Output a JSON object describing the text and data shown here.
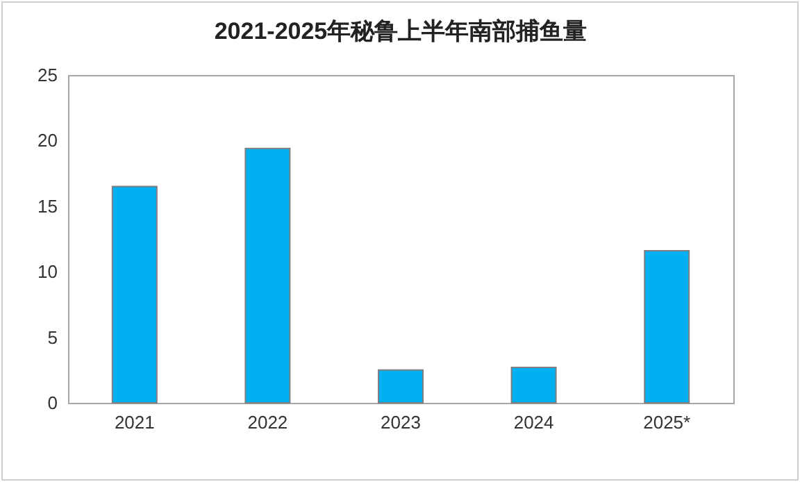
{
  "chart_data": {
    "type": "bar",
    "title": "2021-2025年秘鲁上半年南部捕鱼量",
    "categories": [
      "2021",
      "2022",
      "2023",
      "2024",
      "2025*"
    ],
    "values": [
      16.5,
      19.4,
      2.5,
      2.7,
      11.6
    ],
    "color": "#00b0f0",
    "ylim": [
      0,
      25
    ],
    "yticks": [
      0,
      5,
      10,
      15,
      20,
      25
    ],
    "grid": false
  }
}
